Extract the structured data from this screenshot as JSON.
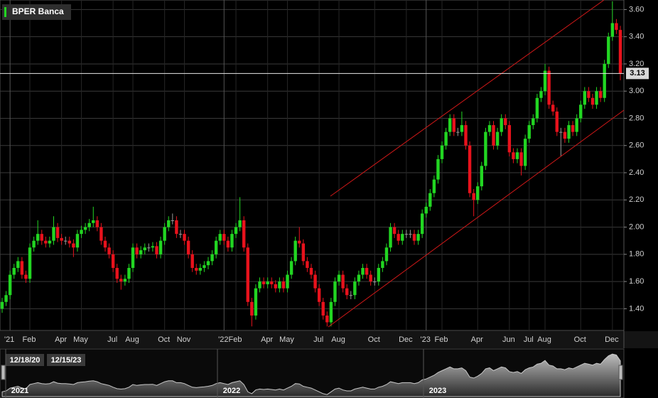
{
  "chart_data": {
    "type": "candlestick",
    "categories": [
      null,
      null,
      "'21",
      null,
      null,
      null,
      null,
      "Feb",
      null,
      null,
      null,
      null,
      null,
      null,
      null,
      "Apr",
      null,
      null,
      null,
      null,
      "May",
      null,
      null,
      null,
      null,
      null,
      null,
      null,
      "Jul",
      null,
      null,
      null,
      null,
      "Aug",
      null,
      null,
      null,
      null,
      null,
      null,
      null,
      "Oct",
      null,
      null,
      null,
      null,
      "Nov",
      null,
      null,
      null,
      null,
      null,
      null,
      null,
      null,
      null,
      "'22",
      null,
      null,
      "Feb",
      null,
      null,
      null,
      null,
      null,
      null,
      null,
      "Apr",
      null,
      null,
      null,
      null,
      "May",
      null,
      null,
      null,
      null,
      null,
      null,
      null,
      "Jul",
      null,
      null,
      null,
      null,
      "Aug",
      null,
      null,
      null,
      null,
      null,
      null,
      null,
      null,
      "Oct",
      null,
      null,
      null,
      null,
      null,
      null,
      null,
      "Dec",
      null,
      null,
      null,
      null,
      "'23",
      null,
      null,
      null,
      "Feb",
      null,
      null,
      null,
      null,
      null,
      null,
      null,
      null,
      "Apr",
      null,
      null,
      null,
      null,
      null,
      null,
      null,
      "Jun",
      null,
      null,
      null,
      null,
      "Jul",
      null,
      null,
      null,
      "Aug",
      null,
      null,
      null,
      null,
      null,
      null,
      null,
      null,
      "Oct",
      null,
      null,
      null,
      null,
      null,
      null,
      null,
      "Dec",
      null,
      null
    ],
    "series": [
      {
        "name": "BPER Banca",
        "up_color": "#22d622",
        "down_color": "#e8121c",
        "flat_color": "#9a9a9a",
        "open": [
          1.4,
          1.45,
          1.5,
          1.65,
          1.7,
          1.75,
          1.65,
          1.62,
          1.85,
          1.9,
          1.95,
          1.9,
          1.88,
          1.9,
          2.0,
          1.92,
          1.9,
          1.9,
          1.88,
          1.85,
          1.95,
          1.98,
          2.0,
          2.03,
          2.05,
          2.0,
          1.9,
          1.85,
          1.8,
          1.7,
          1.62,
          1.6,
          1.62,
          1.7,
          1.85,
          1.8,
          1.83,
          1.85,
          1.85,
          1.86,
          1.8,
          1.9,
          2.0,
          2.05,
          2.05,
          1.95,
          1.95,
          1.9,
          1.8,
          1.7,
          1.68,
          1.7,
          1.72,
          1.75,
          1.8,
          1.9,
          1.95,
          1.9,
          1.85,
          1.95,
          2.0,
          2.05,
          1.85,
          1.45,
          1.35,
          1.55,
          1.6,
          1.58,
          1.6,
          1.58,
          1.55,
          1.6,
          1.55,
          1.65,
          1.75,
          1.9,
          1.88,
          1.75,
          1.7,
          1.65,
          1.55,
          1.45,
          1.35,
          1.3,
          1.45,
          1.6,
          1.65,
          1.55,
          1.5,
          1.5,
          1.6,
          1.65,
          1.7,
          1.65,
          1.6,
          1.6,
          1.7,
          1.75,
          1.85,
          2.0,
          1.95,
          1.9,
          1.95,
          1.95,
          1.95,
          1.9,
          1.95,
          2.1,
          2.15,
          2.25,
          2.35,
          2.5,
          2.6,
          2.7,
          2.8,
          2.7,
          2.7,
          2.75,
          2.6,
          2.25,
          2.2,
          2.3,
          2.45,
          2.7,
          2.75,
          2.6,
          2.7,
          2.8,
          2.75,
          2.55,
          2.5,
          2.55,
          2.45,
          2.65,
          2.75,
          2.8,
          2.95,
          3.0,
          3.15,
          2.9,
          2.85,
          2.7,
          2.7,
          2.65,
          2.75,
          2.7,
          2.8,
          2.9,
          3.0,
          2.95,
          2.9,
          3.0,
          2.95,
          3.2,
          3.4,
          3.5,
          3.45
        ],
        "high": [
          1.48,
          1.53,
          1.68,
          1.73,
          1.78,
          1.78,
          1.68,
          1.88,
          1.93,
          2.05,
          1.98,
          1.93,
          1.93,
          2.08,
          2.03,
          1.95,
          1.93,
          1.93,
          1.91,
          1.98,
          2.01,
          2.03,
          2.06,
          2.15,
          2.08,
          2.03,
          1.93,
          1.88,
          1.83,
          1.73,
          1.65,
          1.65,
          1.73,
          1.88,
          1.88,
          1.86,
          1.88,
          1.88,
          1.89,
          1.89,
          1.93,
          2.03,
          2.08,
          2.1,
          2.08,
          1.98,
          1.98,
          1.93,
          1.83,
          1.73,
          1.73,
          1.75,
          1.78,
          1.83,
          1.93,
          1.98,
          1.98,
          1.93,
          1.98,
          2.03,
          2.22,
          2.08,
          1.88,
          1.48,
          1.58,
          1.63,
          1.63,
          1.63,
          1.63,
          1.61,
          1.63,
          1.63,
          1.68,
          1.78,
          1.93,
          2.0,
          1.91,
          1.78,
          1.73,
          1.68,
          1.58,
          1.48,
          1.38,
          1.48,
          1.63,
          1.68,
          1.68,
          1.58,
          1.53,
          1.63,
          1.68,
          1.73,
          1.73,
          1.68,
          1.63,
          1.73,
          1.78,
          1.88,
          2.03,
          2.03,
          1.98,
          1.98,
          1.98,
          1.98,
          1.98,
          1.98,
          2.13,
          2.18,
          2.28,
          2.38,
          2.53,
          2.63,
          2.73,
          2.83,
          2.83,
          2.73,
          2.85,
          2.78,
          2.63,
          2.28,
          2.33,
          2.48,
          2.73,
          2.78,
          2.78,
          2.73,
          2.83,
          2.83,
          2.78,
          2.58,
          2.58,
          2.58,
          2.68,
          2.78,
          2.83,
          2.98,
          3.03,
          3.2,
          3.18,
          2.93,
          2.88,
          2.73,
          2.73,
          2.78,
          2.78,
          2.83,
          2.93,
          3.03,
          3.03,
          2.98,
          3.03,
          3.03,
          3.23,
          3.43,
          3.66,
          3.53,
          3.48
        ],
        "low": [
          1.37,
          1.42,
          1.47,
          1.62,
          1.67,
          1.62,
          1.59,
          1.59,
          1.82,
          1.87,
          1.87,
          1.85,
          1.85,
          1.87,
          1.89,
          1.87,
          1.87,
          1.85,
          1.78,
          1.82,
          1.92,
          1.95,
          1.97,
          2.0,
          1.97,
          1.87,
          1.82,
          1.77,
          1.67,
          1.59,
          1.54,
          1.57,
          1.59,
          1.67,
          1.77,
          1.77,
          1.8,
          1.82,
          1.82,
          1.77,
          1.77,
          1.87,
          1.97,
          2.02,
          1.92,
          1.92,
          1.87,
          1.77,
          1.67,
          1.65,
          1.65,
          1.67,
          1.69,
          1.72,
          1.77,
          1.87,
          1.87,
          1.82,
          1.82,
          1.92,
          1.97,
          1.82,
          1.42,
          1.27,
          1.32,
          1.52,
          1.55,
          1.55,
          1.55,
          1.52,
          1.52,
          1.52,
          1.52,
          1.62,
          1.72,
          1.85,
          1.72,
          1.67,
          1.62,
          1.52,
          1.42,
          1.32,
          1.27,
          1.27,
          1.42,
          1.57,
          1.52,
          1.47,
          1.47,
          1.47,
          1.57,
          1.62,
          1.62,
          1.57,
          1.57,
          1.57,
          1.67,
          1.72,
          1.82,
          1.92,
          1.87,
          1.87,
          1.92,
          1.92,
          1.87,
          1.87,
          1.92,
          2.07,
          2.12,
          2.22,
          2.32,
          2.47,
          2.57,
          2.67,
          2.67,
          2.67,
          2.67,
          2.57,
          2.22,
          2.08,
          2.17,
          2.27,
          2.42,
          2.67,
          2.57,
          2.57,
          2.67,
          2.72,
          2.52,
          2.47,
          2.47,
          2.38,
          2.42,
          2.62,
          2.72,
          2.77,
          2.92,
          2.97,
          2.87,
          2.82,
          2.67,
          2.52,
          2.62,
          2.62,
          2.67,
          2.67,
          2.77,
          2.87,
          2.92,
          2.87,
          2.87,
          2.92,
          2.92,
          3.17,
          3.37,
          3.42,
          3.08
        ],
        "close": [
          1.45,
          1.5,
          1.65,
          1.7,
          1.75,
          1.65,
          1.62,
          1.85,
          1.9,
          1.95,
          1.9,
          1.88,
          1.9,
          2.0,
          1.92,
          1.9,
          1.9,
          1.88,
          1.85,
          1.95,
          1.98,
          2.0,
          2.03,
          2.05,
          2.0,
          1.9,
          1.85,
          1.8,
          1.7,
          1.62,
          1.6,
          1.62,
          1.7,
          1.85,
          1.8,
          1.83,
          1.85,
          1.85,
          1.86,
          1.8,
          1.9,
          2.0,
          2.05,
          2.05,
          1.95,
          1.95,
          1.9,
          1.8,
          1.7,
          1.68,
          1.7,
          1.72,
          1.75,
          1.8,
          1.9,
          1.95,
          1.9,
          1.85,
          1.95,
          2.0,
          2.05,
          1.85,
          1.45,
          1.35,
          1.55,
          1.6,
          1.58,
          1.6,
          1.58,
          1.55,
          1.6,
          1.55,
          1.65,
          1.75,
          1.9,
          1.88,
          1.75,
          1.7,
          1.65,
          1.55,
          1.45,
          1.35,
          1.3,
          1.45,
          1.6,
          1.65,
          1.55,
          1.5,
          1.5,
          1.6,
          1.65,
          1.7,
          1.65,
          1.6,
          1.6,
          1.7,
          1.75,
          1.85,
          2.0,
          1.95,
          1.9,
          1.95,
          1.95,
          1.95,
          1.9,
          1.95,
          2.1,
          2.15,
          2.25,
          2.35,
          2.5,
          2.6,
          2.7,
          2.8,
          2.7,
          2.7,
          2.75,
          2.6,
          2.25,
          2.2,
          2.3,
          2.45,
          2.7,
          2.75,
          2.6,
          2.7,
          2.8,
          2.75,
          2.55,
          2.5,
          2.55,
          2.45,
          2.65,
          2.75,
          2.8,
          2.95,
          3.0,
          3.15,
          2.9,
          2.85,
          2.7,
          2.7,
          2.65,
          2.75,
          2.7,
          2.8,
          2.9,
          3.0,
          2.95,
          2.9,
          3.0,
          2.95,
          3.2,
          3.4,
          3.5,
          3.45,
          3.13
        ]
      }
    ],
    "ylim": [
      1.24,
      3.67
    ],
    "yticks": [
      {
        "value": 1.4,
        "label": "1.40"
      },
      {
        "value": 1.6,
        "label": "1.60"
      },
      {
        "value": 1.8,
        "label": "1.80"
      },
      {
        "value": 2.0,
        "label": "2.00"
      },
      {
        "value": 2.2,
        "label": "2.20"
      },
      {
        "value": 2.4,
        "label": "2.40"
      },
      {
        "value": 2.6,
        "label": "2.60"
      },
      {
        "value": 2.8,
        "label": "2.80"
      },
      {
        "value": 3.0,
        "label": "3.00"
      },
      {
        "value": 3.2,
        "label": "3.20"
      },
      {
        "value": 3.4,
        "label": "3.40"
      },
      {
        "value": 3.6,
        "label": "3.60"
      }
    ],
    "grid": true,
    "last_price": {
      "value": 3.13,
      "label": "3.13"
    },
    "navigator": {
      "range": [
        "12/18/20",
        "12/15/23"
      ],
      "years": [
        "2021",
        "2022",
        "2023"
      ]
    }
  }
}
